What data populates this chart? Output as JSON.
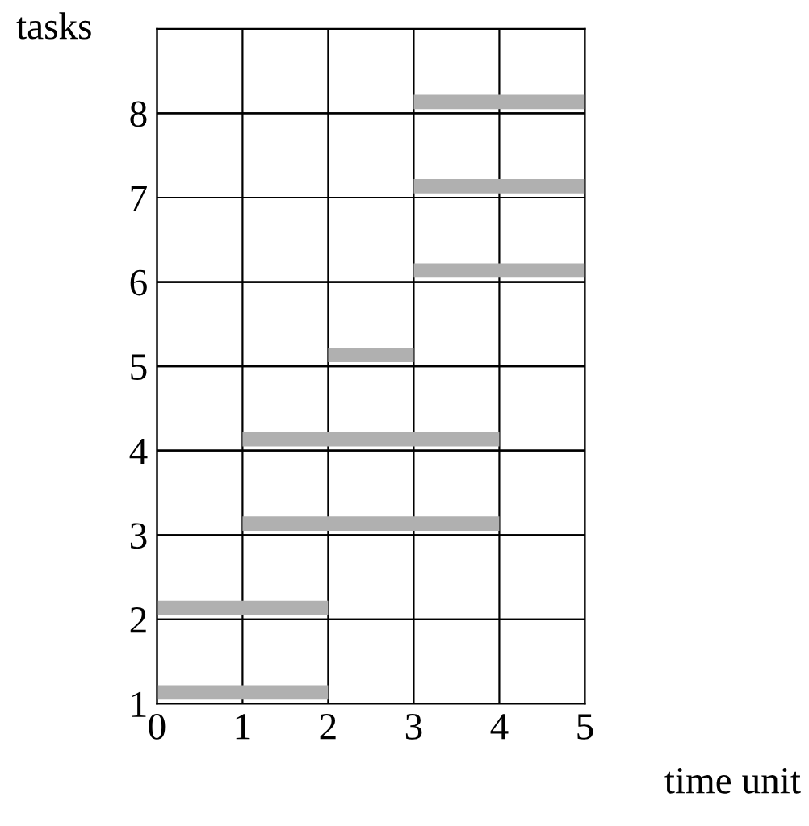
{
  "chart_data": {
    "type": "bar",
    "orientation": "horizontal",
    "xlabel": "time unit",
    "ylabel": "tasks",
    "categories": [
      "8",
      "7",
      "6",
      "5",
      "4",
      "3",
      "2",
      "1"
    ],
    "base": [
      3,
      3,
      3,
      2,
      1,
      1,
      0,
      0
    ],
    "values": [
      2,
      2,
      2,
      1,
      3,
      3,
      2,
      2
    ],
    "color": "#b0b0b0",
    "xlim": [
      0,
      5
    ],
    "xticks": [
      0,
      1,
      2,
      3,
      4,
      5
    ],
    "grid": true,
    "legend": false
  }
}
